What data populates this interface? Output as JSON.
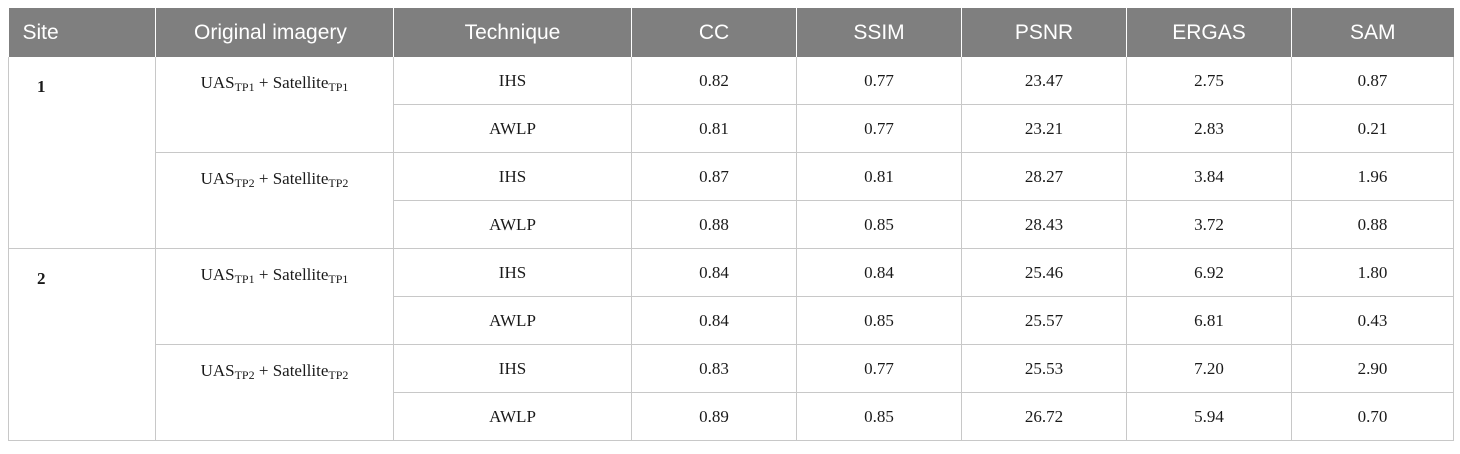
{
  "headers": [
    "Site",
    "Original imagery",
    "Technique",
    "CC",
    "SSIM",
    "PSNR",
    "ERGAS",
    "SAM"
  ],
  "sites": [
    {
      "site": "1",
      "groups": [
        {
          "imagery": {
            "uas": "UAS",
            "uas_sub": "TP1",
            "plus": "+",
            "sat": "Satellite",
            "sat_sub": "TP1"
          },
          "rows": [
            {
              "technique": "IHS",
              "cc": "0.82",
              "ssim": "0.77",
              "psnr": "23.47",
              "ergas": "2.75",
              "sam": "0.87"
            },
            {
              "technique": "AWLP",
              "cc": "0.81",
              "ssim": "0.77",
              "psnr": "23.21",
              "ergas": "2.83",
              "sam": "0.21"
            }
          ]
        },
        {
          "imagery": {
            "uas": "UAS",
            "uas_sub": "TP2",
            "plus": "+",
            "sat": "Satellite",
            "sat_sub": "TP2"
          },
          "rows": [
            {
              "technique": "IHS",
              "cc": "0.87",
              "ssim": "0.81",
              "psnr": "28.27",
              "ergas": "3.84",
              "sam": "1.96"
            },
            {
              "technique": "AWLP",
              "cc": "0.88",
              "ssim": "0.85",
              "psnr": "28.43",
              "ergas": "3.72",
              "sam": "0.88"
            }
          ]
        }
      ]
    },
    {
      "site": "2",
      "groups": [
        {
          "imagery": {
            "uas": "UAS",
            "uas_sub": "TP1",
            "plus": "+",
            "sat": "Satellite",
            "sat_sub": "TP1"
          },
          "rows": [
            {
              "technique": "IHS",
              "cc": "0.84",
              "ssim": "0.84",
              "psnr": "25.46",
              "ergas": "6.92",
              "sam": "1.80"
            },
            {
              "technique": "AWLP",
              "cc": "0.84",
              "ssim": "0.85",
              "psnr": "25.57",
              "ergas": "6.81",
              "sam": "0.43"
            }
          ]
        },
        {
          "imagery": {
            "uas": "UAS",
            "uas_sub": "TP2",
            "plus": "+",
            "sat": "Satellite",
            "sat_sub": "TP2"
          },
          "rows": [
            {
              "technique": "IHS",
              "cc": "0.83",
              "ssim": "0.77",
              "psnr": "25.53",
              "ergas": "7.20",
              "sam": "2.90"
            },
            {
              "technique": "AWLP",
              "cc": "0.89",
              "ssim": "0.85",
              "psnr": "26.72",
              "ergas": "5.94",
              "sam": "0.70"
            }
          ]
        }
      ]
    }
  ]
}
